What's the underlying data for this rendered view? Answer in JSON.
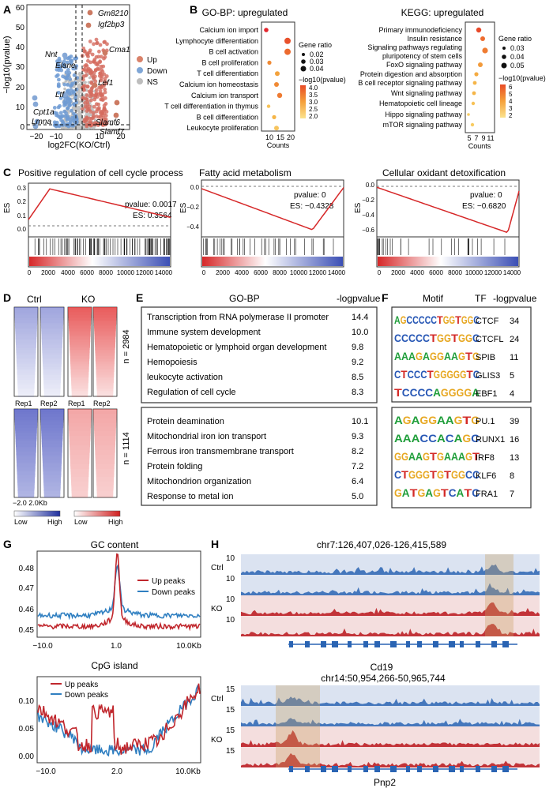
{
  "panel_labels": [
    "A",
    "B",
    "C",
    "D",
    "E",
    "F",
    "G",
    "H"
  ],
  "colors": {
    "up": "#c0392b",
    "down": "#2c6fb5",
    "ns": "#b0b0b0",
    "gsea_line": "#d62728"
  },
  "volcano": {
    "ylabel": "−log10(pvalue)",
    "xlabel": "log2FC(KO/Ctrl)",
    "x_ticks": [
      "−20",
      "−10",
      "0",
      "10",
      "20"
    ],
    "y_ticks": [
      "0",
      "10",
      "20",
      "30",
      "40",
      "50",
      "60"
    ],
    "legend": [
      "Up",
      "Down",
      "NS"
    ],
    "genes": [
      "Gm8210",
      "Igf2bp3",
      "Cma1",
      "Nnt",
      "Elane",
      "Lef1",
      "Ltf",
      "Cpt1a",
      "Lmna",
      "Slamf6",
      "Slamf7"
    ]
  },
  "gobp": {
    "title": "GO-BP: upregulated",
    "terms": [
      "Calcium ion import",
      "Lymphocyte differentiation",
      "B cell activation",
      "B cell proliferation",
      "T cell differentiation",
      "Calcium ion homeostasis",
      "Calcium ion transport",
      "T cell differentiation in thymus",
      "B cell differentiation",
      "Leukocyte proliferation"
    ],
    "x_ticks": [
      "10",
      "15",
      "20"
    ],
    "xlabel": "Counts",
    "size_title": "Gene ratio",
    "size_labels": [
      "0.02",
      "0.03",
      "0.04"
    ],
    "color_title": "−log10(pvalue)",
    "color_labels": [
      "4.0",
      "3.5",
      "3.0",
      "2.5",
      "2.0"
    ]
  },
  "kegg": {
    "title": "KEGG: upregulated",
    "terms": [
      "Primary immunodeficiency",
      "Insulin resistance",
      "Signaling pathways regulating",
      "pluripotency of stem cells",
      "FoxO signaling pathway",
      "Protein digestion and absorption",
      "B cell receptor signaling pathway",
      "Wnt signaling pathway",
      "Hematopoietic cell lineage",
      "Hippo signaling pathway",
      "mTOR signaling pathway"
    ],
    "x_ticks": [
      "5",
      "7",
      "9",
      "11"
    ],
    "xlabel": "Counts",
    "size_title": "Gene ratio",
    "size_labels": [
      "0.03",
      "0.04",
      "0.05"
    ],
    "color_title": "−log10(pvalue)",
    "color_labels": [
      "6",
      "5",
      "4",
      "3",
      "2"
    ]
  },
  "gsea": [
    {
      "title": "Positive regulation of cell cycle process",
      "pvalue": "pvalue: 0.0017",
      "es": "ES: 0.3564",
      "ylabel": "ES",
      "y_ticks": [
        "0.3",
        "0.2",
        "0.1",
        "0.0"
      ],
      "x_ticks": [
        "0",
        "2000",
        "4000",
        "6000",
        "8000",
        "10000",
        "12000",
        "14000"
      ]
    },
    {
      "title": "Fatty acid metabolism",
      "pvalue": "pvalue: 0",
      "es": "ES: −0.4328",
      "ylabel": "ES",
      "y_ticks": [
        "0.0",
        "−0.2",
        "−0.4"
      ],
      "x_ticks": [
        "0",
        "2000",
        "4000",
        "6000",
        "8000",
        "10000",
        "12000",
        "14000"
      ]
    },
    {
      "title": "Cellular oxidant detoxification",
      "pvalue": "pvalue: 0",
      "es": "ES: −0.6820",
      "ylabel": "ES",
      "y_ticks": [
        "0.0",
        "−0.2",
        "−0.4",
        "−0.6"
      ],
      "x_ticks": [
        "0",
        "2000",
        "4000",
        "6000",
        "8000",
        "10000",
        "12000",
        "14000"
      ]
    }
  ],
  "heatmap": {
    "ctrl": "Ctrl",
    "ko": "KO",
    "rep_labels": [
      "Rep1",
      "Rep2",
      "Rep1",
      "Rep2"
    ],
    "n_top": "n = 2984",
    "n_bottom": "n = 1114",
    "axis": "−2.0  2.0Kb",
    "scale_low": "Low",
    "scale_high": "High"
  },
  "go_table": {
    "h1": "GO-BP",
    "h2": "-logpvalue",
    "up": [
      {
        "term": "Transcription from RNA polymerase II promoter",
        "val": "14.4"
      },
      {
        "term": "Immune system development",
        "val": "10.0"
      },
      {
        "term": "Hematopoietic or lymphoid organ development",
        "val": "9.8"
      },
      {
        "term": "Hemopoiesis",
        "val": "9.2"
      },
      {
        "term": "leukocyte activation",
        "val": "8.5"
      },
      {
        "term": "Regulation of cell cycle",
        "val": "8.3"
      }
    ],
    "down": [
      {
        "term": "Protein deamination",
        "val": "10.1"
      },
      {
        "term": "Mitochondrial iron ion transport",
        "val": "9.3"
      },
      {
        "term": "Ferrous iron transmembrane transport",
        "val": "8.2"
      },
      {
        "term": "Protein folding",
        "val": "7.2"
      },
      {
        "term": "Mitochondrion organization",
        "val": "6.4"
      },
      {
        "term": "Response to metal ion",
        "val": "5.0"
      }
    ]
  },
  "motif_table": {
    "h1": "Motif",
    "h2": "TF",
    "h3": "-logpvalue",
    "up": [
      {
        "seq": "AGCCCCCTGGTGGC",
        "tf": "CTCF",
        "val": "34"
      },
      {
        "seq": "CCCCCTGGTGGC",
        "tf": "CTCFL",
        "val": "24"
      },
      {
        "seq": "AAAGAGGAAGTG",
        "tf": "SPIB",
        "val": "11"
      },
      {
        "seq": "CTCCCTGGGGGTC",
        "tf": "GLIS3",
        "val": "5"
      },
      {
        "seq": "TCCCCAGGGGA",
        "tf": "EBF1",
        "val": "4"
      }
    ],
    "down": [
      {
        "seq": "AGAGGAAGTG",
        "tf": "PU.1",
        "val": "39"
      },
      {
        "seq": "AAACCACAGC",
        "tf": "RUNX1",
        "val": "16"
      },
      {
        "seq": "GGAAGTGAAAGT",
        "tf": "IRF8",
        "val": "13"
      },
      {
        "seq": "CTGGGTGTGGCC",
        "tf": "KLF6",
        "val": "8"
      },
      {
        "seq": "GATGAGTCATC",
        "tf": "FRA1",
        "val": "7"
      }
    ]
  },
  "gc_plot": {
    "title": "GC content",
    "legend": [
      "Up peaks",
      "Down peaks"
    ],
    "y_ticks": [
      "0.48",
      "0.47",
      "0.46",
      "0.45"
    ],
    "x_ticks": [
      "−10.0",
      "1.0",
      "10.0Kb"
    ]
  },
  "cpg_plot": {
    "title": "CpG island",
    "legend": [
      "Up peaks",
      "Down peaks"
    ],
    "y_ticks": [
      "0.10",
      "0.05",
      "0.00"
    ],
    "x_ticks": [
      "−10.0",
      "2.0",
      "10.0Kb"
    ]
  },
  "tracks": [
    {
      "coord": "chr7:126,407,026-126,415,589",
      "gene": "Cd19",
      "scale": "10",
      "row_labels": [
        "Ctrl",
        "",
        "KO",
        ""
      ]
    },
    {
      "coord": "chr14:50,954,266-50,965,744",
      "gene": "Pnp2",
      "scale": "15",
      "row_labels": [
        "Ctrl",
        "",
        "KO",
        ""
      ]
    }
  ]
}
